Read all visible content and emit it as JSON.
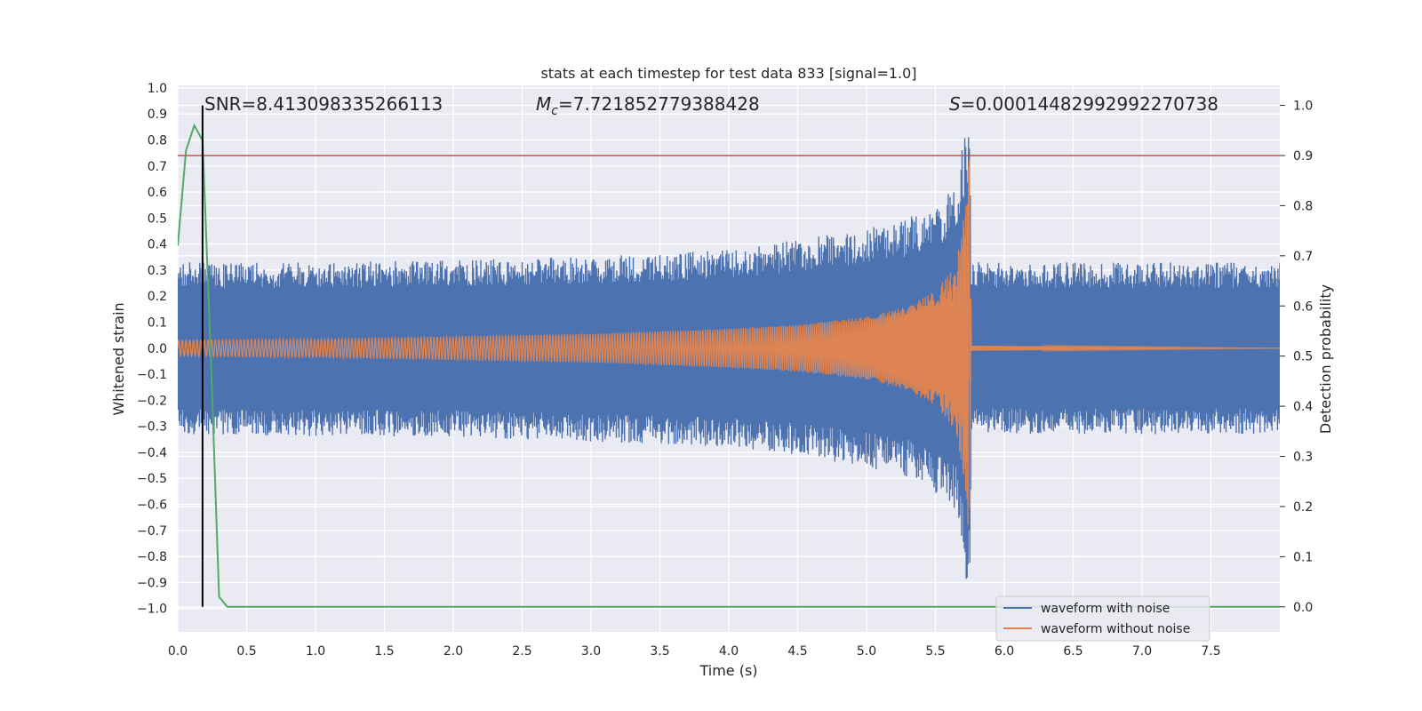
{
  "chart_data": {
    "type": "line",
    "title": "stats at each timestep for test data 833 [signal=1.0]",
    "xlabel": "Time (s)",
    "ylabel": "Whitened strain",
    "y2label": "Detection probability",
    "xlim": [
      0.0,
      8.0
    ],
    "ylim": [
      -1.09,
      1.01
    ],
    "y2lim": [
      -0.05,
      1.04
    ],
    "x_ticks": [
      "0.0",
      "0.5",
      "1.0",
      "1.5",
      "2.0",
      "2.5",
      "3.0",
      "3.5",
      "4.0",
      "4.5",
      "5.0",
      "5.5",
      "6.0",
      "6.5",
      "7.0",
      "7.5"
    ],
    "y_ticks": [
      "1.0",
      "0.9",
      "0.8",
      "0.7",
      "0.6",
      "0.5",
      "0.4",
      "0.3",
      "0.2",
      "0.1",
      "0.0",
      "−0.1",
      "−0.2",
      "−0.3",
      "−0.4",
      "−0.5",
      "−0.6",
      "−0.7",
      "−0.8",
      "−0.9",
      "−1.0"
    ],
    "y2_ticks": [
      "1.0",
      "0.9",
      "0.8",
      "0.7",
      "0.6",
      "0.5",
      "0.4",
      "0.3",
      "0.2",
      "0.1",
      "0.0"
    ],
    "annotations": {
      "snr": "SNR=8.413098335266113",
      "mc_symbol": "M",
      "mc_sub": "c",
      "mc_value": "=7.721852779388428",
      "s_symbol": "S",
      "s_value": "=0.00014482992992270738"
    },
    "series": [
      {
        "name": "waveform with noise",
        "color": "#4c72b0",
        "axis": "left",
        "description_envelope": {
          "x": [
            0.0,
            1.0,
            2.0,
            3.0,
            4.0,
            4.5,
            5.0,
            5.3,
            5.5,
            5.65,
            5.72,
            5.75,
            5.76,
            8.0
          ],
          "upper": [
            0.33,
            0.33,
            0.34,
            0.35,
            0.38,
            0.42,
            0.46,
            0.5,
            0.55,
            0.62,
            0.85,
            0.9,
            0.33,
            0.33
          ],
          "lower": [
            -0.33,
            -0.34,
            -0.34,
            -0.36,
            -0.38,
            -0.41,
            -0.46,
            -0.5,
            -0.56,
            -0.63,
            -0.9,
            -1.0,
            -0.33,
            -0.33
          ]
        }
      },
      {
        "name": "waveform without noise",
        "color": "#dd8452",
        "axis": "left",
        "description_envelope": {
          "x": [
            0.0,
            1.0,
            2.0,
            3.0,
            4.0,
            4.5,
            5.0,
            5.3,
            5.5,
            5.65,
            5.72,
            5.75,
            5.76,
            8.0
          ],
          "amplitude": [
            0.03,
            0.035,
            0.045,
            0.055,
            0.075,
            0.09,
            0.12,
            0.16,
            0.22,
            0.32,
            0.55,
            0.8,
            0.01,
            0.0
          ]
        }
      },
      {
        "name": "detection probability",
        "color": "#55a868",
        "axis": "right",
        "x": [
          0.0,
          0.06,
          0.12,
          0.18,
          0.24,
          0.3,
          0.36,
          0.42,
          8.0
        ],
        "y": [
          0.72,
          0.91,
          0.96,
          0.93,
          0.5,
          0.02,
          0.0,
          0.0,
          0.0
        ]
      },
      {
        "name": "threshold",
        "color": "#c44e52",
        "axis": "right",
        "x": [
          0.0,
          8.0
        ],
        "y": [
          0.9,
          0.9
        ]
      },
      {
        "name": "marker",
        "color": "#000000",
        "axis": "right",
        "x": [
          0.18,
          0.18
        ],
        "y": [
          0.0,
          1.0
        ]
      }
    ],
    "legend": {
      "placement": "lower-right",
      "entries": [
        {
          "label": "waveform with noise",
          "color": "#4c72b0"
        },
        {
          "label": "waveform without noise",
          "color": "#dd8452"
        }
      ]
    },
    "grid": true,
    "colors": {
      "background": "#eaeaf2",
      "grid": "#ffffff",
      "text": "#262626"
    }
  }
}
